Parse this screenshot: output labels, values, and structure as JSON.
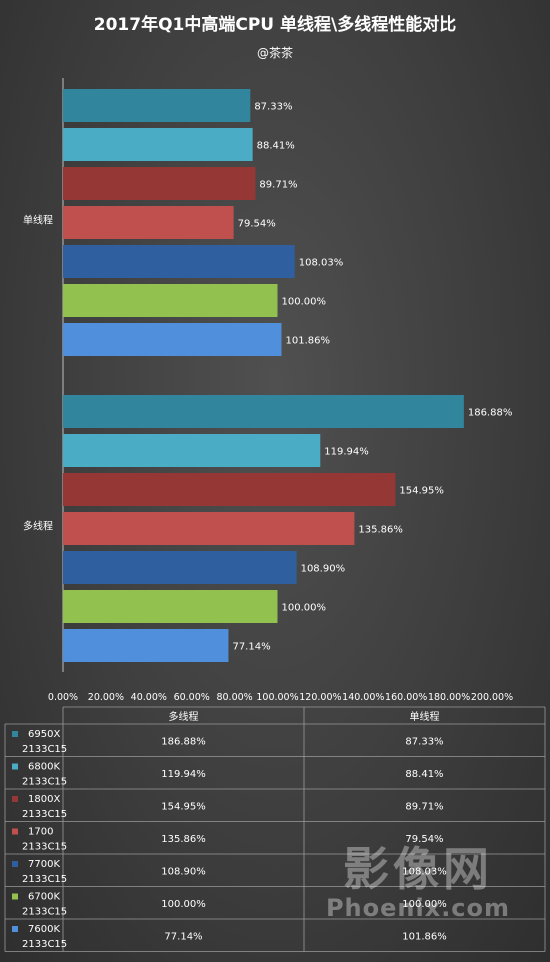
{
  "chart_data": {
    "type": "bar",
    "orientation": "horizontal",
    "title": "2017年Q1中高端CPU  单线程\\多线程性能对比",
    "subtitle": "@茶茶",
    "groups": [
      "单线程",
      "多线程"
    ],
    "series": [
      {
        "name": "6950X 2133C15",
        "name_line1": "6950X",
        "name_line2": "2133C15",
        "color": "#31859c",
        "values": [
          87.33,
          186.88
        ]
      },
      {
        "name": "6800K 2133C15",
        "name_line1": "6800K",
        "name_line2": "2133C15",
        "color": "#4bacc6",
        "values": [
          88.41,
          119.94
        ]
      },
      {
        "name": "1800X 2133C15",
        "name_line1": "1800X",
        "name_line2": "2133C15",
        "color": "#953735",
        "values": [
          89.71,
          154.95
        ]
      },
      {
        "name": "1700 2133C15",
        "name_line1": "1700",
        "name_line2": "2133C15",
        "color": "#c0504d",
        "values": [
          79.54,
          135.86
        ]
      },
      {
        "name": "7700K 2133C15",
        "name_line1": "7700K",
        "name_line2": "2133C15",
        "color": "#2f5f9e",
        "values": [
          108.03,
          108.9
        ]
      },
      {
        "name": "6700K 2133C15",
        "name_line1": "6700K",
        "name_line2": "2133C15",
        "color": "#92c14f",
        "values": [
          100.0,
          100.0
        ]
      },
      {
        "name": "7600K 2133C15",
        "name_line1": "7600K",
        "name_line2": "2133C15",
        "color": "#4f8fdc",
        "values": [
          101.86,
          77.14
        ]
      }
    ],
    "value_labels": {
      "单线程": [
        "87.33%",
        "88.41%",
        "89.71%",
        "79.54%",
        "108.03%",
        "100.00%",
        "101.86%"
      ],
      "多线程": [
        "186.88%",
        "119.94%",
        "154.95%",
        "135.86%",
        "108.90%",
        "100.00%",
        "77.14%"
      ]
    },
    "xlim": [
      0,
      200
    ],
    "x_ticks": [
      "0.00%",
      "20.00%",
      "40.00%",
      "60.00%",
      "80.00%",
      "100.00%",
      "120.00%",
      "140.00%",
      "160.00%",
      "180.00%",
      "200.00%"
    ],
    "grid": false,
    "data_table": {
      "headers": [
        "多线程",
        "单线程"
      ],
      "rows": [
        [
          "186.88%",
          "87.33%"
        ],
        [
          "119.94%",
          "88.41%"
        ],
        [
          "154.95%",
          "89.71%"
        ],
        [
          "135.86%",
          "79.54%"
        ],
        [
          "108.90%",
          "108.03%"
        ],
        [
          "100.00%",
          "100.00%"
        ],
        [
          "77.14%",
          "101.86%"
        ]
      ]
    }
  },
  "watermark": {
    "main": "影像网",
    "sub": "Phoenix.com"
  }
}
